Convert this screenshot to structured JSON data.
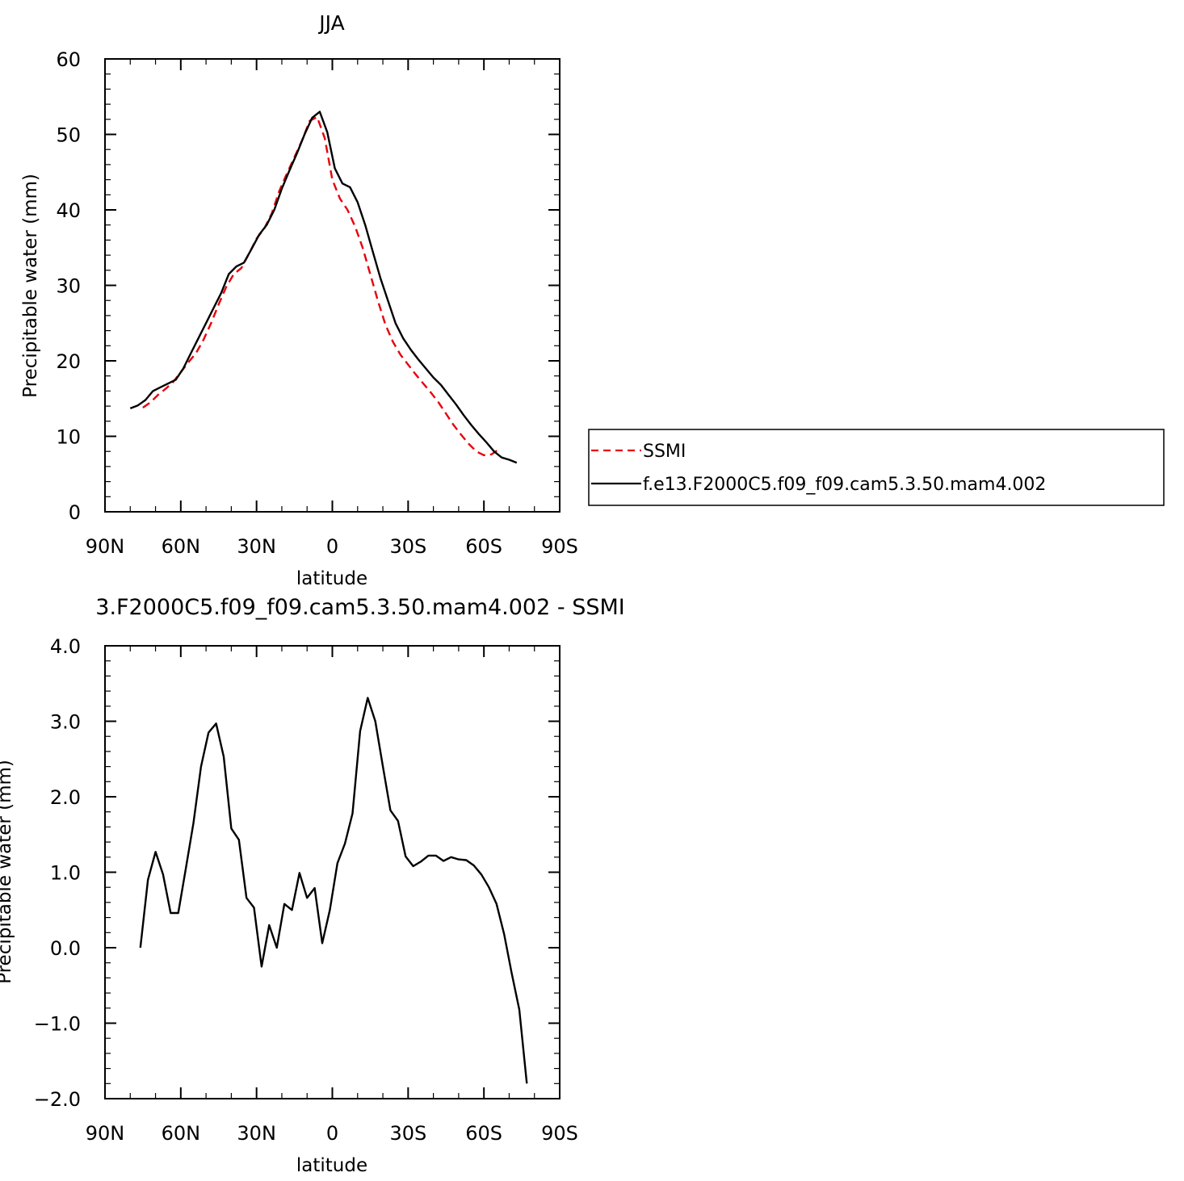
{
  "chart_data": [
    {
      "type": "line",
      "title": "JJA",
      "xlabel": "latitude",
      "ylabel": "Precipitable water (mm)",
      "xlim": [
        90,
        -90
      ],
      "ylim": [
        0,
        60
      ],
      "x_ticks": [
        {
          "value": 90,
          "label": "90N"
        },
        {
          "value": 60,
          "label": "60N"
        },
        {
          "value": 30,
          "label": "30N"
        },
        {
          "value": 0,
          "label": "0"
        },
        {
          "value": -30,
          "label": "30S"
        },
        {
          "value": -60,
          "label": "60S"
        },
        {
          "value": -90,
          "label": "90S"
        }
      ],
      "y_ticks": [
        {
          "value": 0,
          "label": "0"
        },
        {
          "value": 10,
          "label": "10"
        },
        {
          "value": 20,
          "label": "20"
        },
        {
          "value": 30,
          "label": "30"
        },
        {
          "value": 40,
          "label": "40"
        },
        {
          "value": 50,
          "label": "50"
        },
        {
          "value": 60,
          "label": "60"
        }
      ],
      "legend_position": "right",
      "series": [
        {
          "name": "SSMI",
          "color": "#e8000b",
          "dash": true,
          "points": [
            [
              75,
              13.8
            ],
            [
              72,
              14.5
            ],
            [
              69,
              15.5
            ],
            [
              66,
              16.3
            ],
            [
              63,
              17.2
            ],
            [
              60,
              18.5
            ],
            [
              57,
              19.8
            ],
            [
              54,
              21.0
            ],
            [
              51,
              22.8
            ],
            [
              48,
              25.0
            ],
            [
              45,
              27.5
            ],
            [
              42,
              29.8
            ],
            [
              39,
              31.5
            ],
            [
              36,
              32.3
            ],
            [
              33,
              34.2
            ],
            [
              30,
              36.2
            ],
            [
              27,
              37.5
            ],
            [
              24,
              39.5
            ],
            [
              21,
              42.5
            ],
            [
              18,
              44.8
            ],
            [
              15,
              47.0
            ],
            [
              12,
              49.2
            ],
            [
              9,
              51.8
            ],
            [
              6,
              52.3
            ],
            [
              3,
              49.5
            ],
            [
              0,
              44.0
            ],
            [
              -3,
              41.5
            ],
            [
              -6,
              40.0
            ],
            [
              -9,
              37.8
            ],
            [
              -12,
              35.0
            ],
            [
              -15,
              31.5
            ],
            [
              -18,
              28.0
            ],
            [
              -21,
              24.8
            ],
            [
              -24,
              22.5
            ],
            [
              -27,
              20.8
            ],
            [
              -30,
              19.5
            ],
            [
              -33,
              18.2
            ],
            [
              -36,
              17.0
            ],
            [
              -39,
              15.8
            ],
            [
              -42,
              14.5
            ],
            [
              -45,
              13.0
            ],
            [
              -48,
              11.5
            ],
            [
              -51,
              10.2
            ],
            [
              -54,
              9.0
            ],
            [
              -57,
              8.0
            ],
            [
              -60,
              7.5
            ],
            [
              -63,
              7.6
            ],
            [
              -66,
              8.3
            ]
          ]
        },
        {
          "name": "f.e13.F2000C5.f09_f09.cam5.3.50.mam4.002",
          "color": "#000000",
          "dash": false,
          "points": [
            [
              80,
              13.7
            ],
            [
              77,
              14.1
            ],
            [
              74,
              14.8
            ],
            [
              71,
              16.0
            ],
            [
              68,
              16.5
            ],
            [
              65,
              17.0
            ],
            [
              62,
              17.5
            ],
            [
              59,
              19.0
            ],
            [
              56,
              21.0
            ],
            [
              53,
              23.0
            ],
            [
              50,
              25.0
            ],
            [
              47,
              27.0
            ],
            [
              44,
              29.0
            ],
            [
              41,
              31.5
            ],
            [
              38,
              32.5
            ],
            [
              35,
              33.0
            ],
            [
              32,
              34.8
            ],
            [
              29,
              36.7
            ],
            [
              26,
              38.0
            ],
            [
              23,
              40.0
            ],
            [
              20,
              42.8
            ],
            [
              17,
              45.2
            ],
            [
              14,
              47.5
            ],
            [
              11,
              50.0
            ],
            [
              8,
              52.2
            ],
            [
              5,
              53.0
            ],
            [
              2,
              50.3
            ],
            [
              -1,
              45.5
            ],
            [
              -4,
              43.5
            ],
            [
              -7,
              43.0
            ],
            [
              -10,
              41.0
            ],
            [
              -13,
              38.0
            ],
            [
              -16,
              34.5
            ],
            [
              -19,
              31.0
            ],
            [
              -22,
              28.0
            ],
            [
              -25,
              25.0
            ],
            [
              -28,
              23.0
            ],
            [
              -31,
              21.5
            ],
            [
              -34,
              20.2
            ],
            [
              -37,
              19.0
            ],
            [
              -40,
              17.8
            ],
            [
              -43,
              16.8
            ],
            [
              -46,
              15.5
            ],
            [
              -49,
              14.2
            ],
            [
              -52,
              12.8
            ],
            [
              -55,
              11.5
            ],
            [
              -58,
              10.3
            ],
            [
              -61,
              9.2
            ],
            [
              -64,
              8.0
            ],
            [
              -67,
              7.2
            ],
            [
              -70,
              6.9
            ],
            [
              -73,
              6.5
            ]
          ]
        }
      ]
    },
    {
      "type": "line",
      "title": "3.F2000C5.f09_f09.cam5.3.50.mam4.002 - SSMI",
      "xlabel": "latitude",
      "ylabel": "Precipitable water (mm)",
      "xlim": [
        90,
        -90
      ],
      "ylim": [
        -2.0,
        4.0
      ],
      "x_ticks": [
        {
          "value": 90,
          "label": "90N"
        },
        {
          "value": 60,
          "label": "60N"
        },
        {
          "value": 30,
          "label": "30N"
        },
        {
          "value": 0,
          "label": "0"
        },
        {
          "value": -30,
          "label": "30S"
        },
        {
          "value": -60,
          "label": "60S"
        },
        {
          "value": -90,
          "label": "90S"
        }
      ],
      "y_ticks": [
        {
          "value": -2.0,
          "label": "−2.0"
        },
        {
          "value": -1.0,
          "label": "−1.0"
        },
        {
          "value": 0.0,
          "label": "0.0"
        },
        {
          "value": 1.0,
          "label": "1.0"
        },
        {
          "value": 2.0,
          "label": "2.0"
        },
        {
          "value": 3.0,
          "label": "3.0"
        },
        {
          "value": 4.0,
          "label": "4.0"
        }
      ],
      "series": [
        {
          "color": "#000000",
          "dash": false,
          "points": [
            [
              76,
              0.0
            ],
            [
              73,
              0.9
            ],
            [
              70,
              1.27
            ],
            [
              67,
              0.97
            ],
            [
              64,
              0.46
            ],
            [
              61,
              0.46
            ],
            [
              58,
              1.05
            ],
            [
              55,
              1.65
            ],
            [
              52,
              2.4
            ],
            [
              49,
              2.85
            ],
            [
              46,
              2.97
            ],
            [
              43,
              2.53
            ],
            [
              40,
              1.58
            ],
            [
              37,
              1.43
            ],
            [
              34,
              0.66
            ],
            [
              31,
              0.53
            ],
            [
              28,
              -0.25
            ],
            [
              25,
              0.3
            ],
            [
              22,
              0.0
            ],
            [
              19,
              0.58
            ],
            [
              16,
              0.5
            ],
            [
              13,
              0.99
            ],
            [
              10,
              0.66
            ],
            [
              7,
              0.79
            ],
            [
              4,
              0.06
            ],
            [
              1,
              0.5
            ],
            [
              -2,
              1.12
            ],
            [
              -5,
              1.38
            ],
            [
              -8,
              1.78
            ],
            [
              -11,
              2.87
            ],
            [
              -14,
              3.31
            ],
            [
              -17,
              3.0
            ],
            [
              -20,
              2.4
            ],
            [
              -23,
              1.82
            ],
            [
              -26,
              1.68
            ],
            [
              -29,
              1.21
            ],
            [
              -32,
              1.08
            ],
            [
              -35,
              1.14
            ],
            [
              -38,
              1.22
            ],
            [
              -41,
              1.22
            ],
            [
              -44,
              1.15
            ],
            [
              -47,
              1.2
            ],
            [
              -50,
              1.17
            ],
            [
              -53,
              1.16
            ],
            [
              -56,
              1.09
            ],
            [
              -59,
              0.97
            ],
            [
              -62,
              0.8
            ],
            [
              -65,
              0.58
            ],
            [
              -68,
              0.18
            ],
            [
              -71,
              -0.34
            ],
            [
              -74,
              -0.82
            ],
            [
              -77,
              -1.8
            ]
          ]
        }
      ]
    }
  ]
}
